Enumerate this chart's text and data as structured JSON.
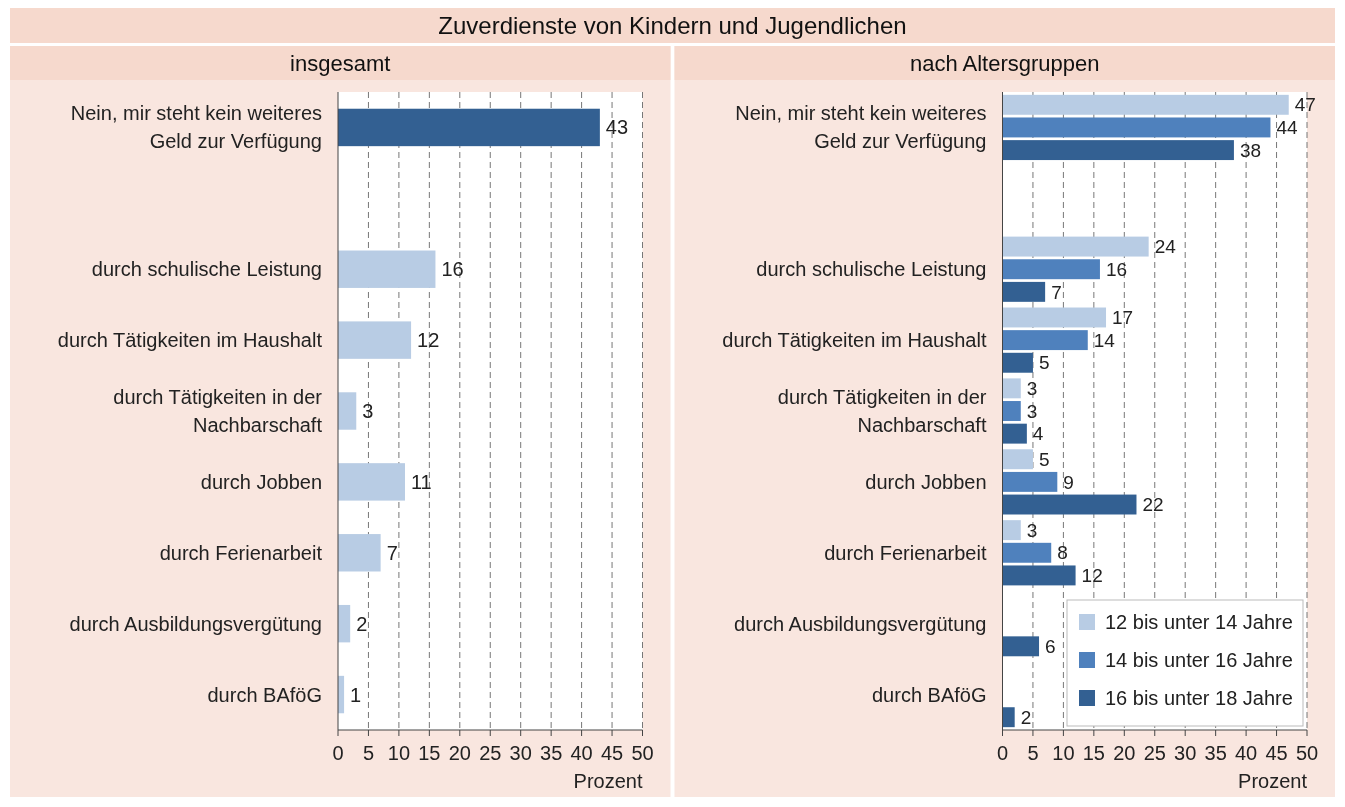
{
  "chart_data": [
    {
      "type": "bar",
      "orientation": "horizontal",
      "title": "Zuverdienste von Kindern und Jugendlichen",
      "subtitle": "insgesamt",
      "xlabel": "Prozent",
      "categories": [
        "Nein, mir steht kein weiteres Geld zur Verfügung",
        null,
        "durch schulische Leistung",
        "durch Tätigkeiten im Haushalt",
        "durch Tätigkeiten in der Nachbarschaft",
        "durch Jobben",
        "durch Ferienarbeit",
        "durch Ausbildungsvergütung",
        "durch BAföG"
      ],
      "values": [
        43,
        null,
        16,
        12,
        3,
        11,
        7,
        2,
        1
      ],
      "colors": [
        "#336092",
        null,
        "#b8cce4",
        "#b8cce4",
        "#b8cce4",
        "#b8cce4",
        "#b8cce4",
        "#b8cce4",
        "#b8cce4"
      ],
      "xlim": [
        0,
        50
      ],
      "xticks": [
        0,
        5,
        10,
        15,
        20,
        25,
        30,
        35,
        40,
        45,
        50
      ],
      "grid": "x",
      "data_labels": true
    },
    {
      "type": "bar",
      "orientation": "horizontal",
      "subtitle": "nach Altersgruppen",
      "xlabel": "Prozent",
      "categories": [
        "Nein, mir steht kein weiteres Geld zur Verfügung",
        null,
        "durch schulische Leistung",
        "durch Tätigkeiten im Haushalt",
        "durch Tätigkeiten in der Nachbarschaft",
        "durch Jobben",
        "durch Ferienarbeit",
        "durch Ausbildungsvergütung",
        "durch BAföG"
      ],
      "series": [
        {
          "name": "12 bis unter 14 Jahre",
          "color": "#b8cce4",
          "values": [
            47,
            null,
            24,
            17,
            3,
            5,
            3,
            null,
            null
          ]
        },
        {
          "name": "14 bis unter 16 Jahre",
          "color": "#4f81bd",
          "values": [
            44,
            null,
            16,
            14,
            3,
            9,
            8,
            null,
            null
          ]
        },
        {
          "name": "16 bis unter 18 Jahre",
          "color": "#336092",
          "values": [
            38,
            null,
            7,
            5,
            4,
            22,
            12,
            6,
            2
          ]
        }
      ],
      "xlim": [
        0,
        50
      ],
      "xticks": [
        0,
        5,
        10,
        15,
        20,
        25,
        30,
        35,
        40,
        45,
        50
      ],
      "grid": "x",
      "data_labels": true,
      "legend": "bottom right"
    }
  ]
}
